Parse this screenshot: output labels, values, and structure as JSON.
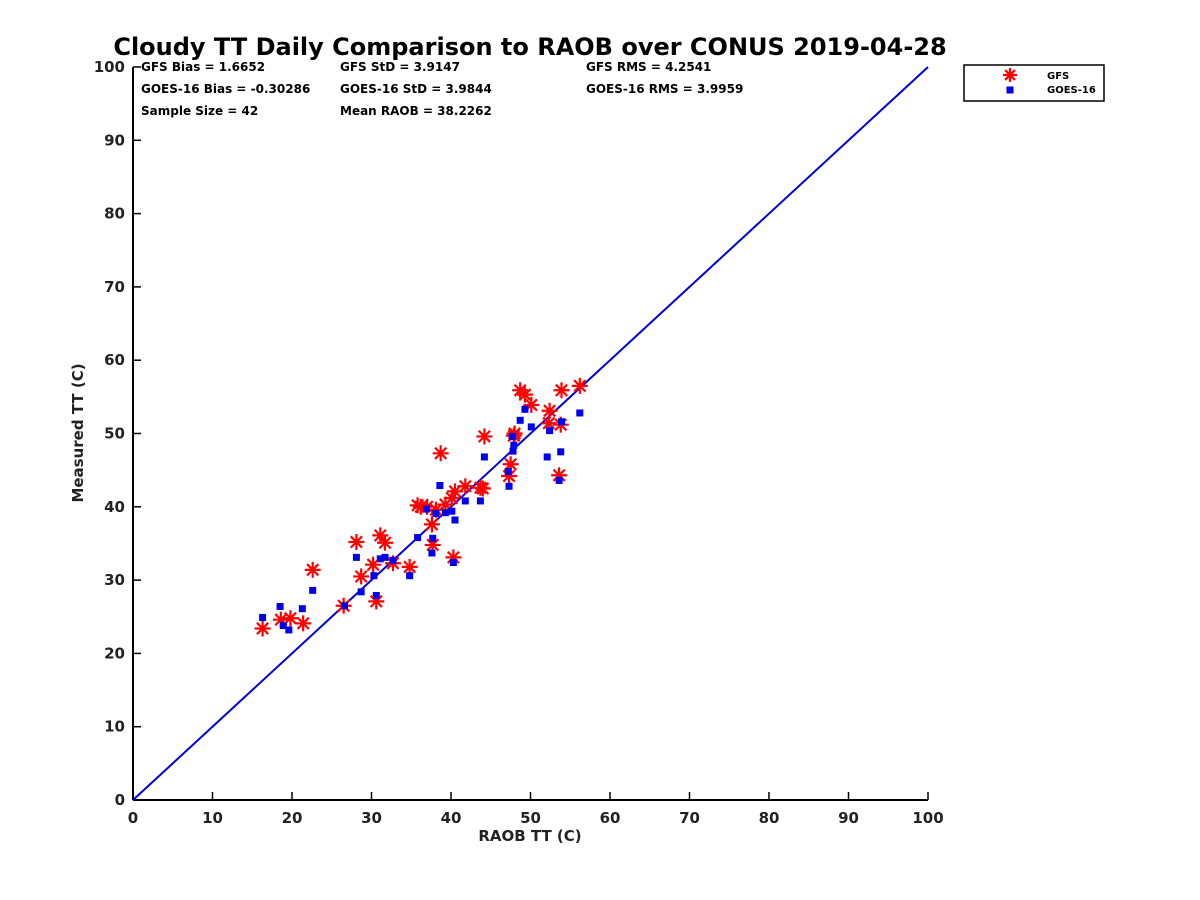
{
  "chart_data": {
    "type": "scatter",
    "title": "Cloudy TT Daily Comparison to RAOB over CONUS 2019-04-28",
    "xlabel": "RAOB TT (C)",
    "ylabel": "Measured TT (C)",
    "xlim": [
      0,
      100
    ],
    "ylim": [
      0,
      100
    ],
    "xticks": [
      0,
      10,
      20,
      30,
      40,
      50,
      60,
      70,
      80,
      90,
      100
    ],
    "yticks": [
      0,
      10,
      20,
      30,
      40,
      50,
      60,
      70,
      80,
      90,
      100
    ],
    "grid": false,
    "legend_position": "top-right outside",
    "reference_line": {
      "x": [
        0,
        100
      ],
      "y": [
        0,
        100
      ],
      "color": "#0000dd"
    },
    "stats": {
      "gfs_bias": "GFS Bias = 1.6652",
      "goes_bias": "GOES-16 Bias = -0.30286",
      "sample_size": "Sample Size = 42",
      "gfs_std": "GFS StD = 3.9147",
      "goes_std": "GOES-16 StD = 3.9844",
      "mean_raob": "Mean RAOB = 38.2262",
      "gfs_rms": "GFS RMS = 4.2541",
      "goes_rms": "GOES-16 RMS = 3.9959"
    },
    "series": [
      {
        "name": "GFS",
        "marker": "asterisk",
        "color": "#ff0000",
        "points": [
          [
            16.3,
            23.4
          ],
          [
            18.6,
            24.6
          ],
          [
            19.8,
            24.8
          ],
          [
            21.4,
            24.1
          ],
          [
            22.6,
            31.4
          ],
          [
            26.5,
            26.5
          ],
          [
            28.1,
            35.2
          ],
          [
            28.7,
            30.5
          ],
          [
            30.2,
            32.1
          ],
          [
            30.6,
            27.1
          ],
          [
            31.1,
            36.1
          ],
          [
            31.7,
            35.1
          ],
          [
            32.7,
            32.3
          ],
          [
            34.8,
            31.8
          ],
          [
            35.8,
            40.2
          ],
          [
            37.0,
            40.0
          ],
          [
            37.6,
            37.6
          ],
          [
            37.7,
            34.8
          ],
          [
            38.1,
            39.6
          ],
          [
            38.7,
            47.3
          ],
          [
            39.3,
            40.3
          ],
          [
            40.1,
            41.2
          ],
          [
            40.3,
            33.1
          ],
          [
            40.5,
            42.1
          ],
          [
            41.8,
            42.8
          ],
          [
            43.7,
            42.6
          ],
          [
            44.2,
            49.6
          ],
          [
            47.3,
            44.2
          ],
          [
            47.5,
            45.8
          ],
          [
            47.9,
            49.7
          ],
          [
            48.0,
            50.0
          ],
          [
            48.7,
            55.9
          ],
          [
            49.3,
            55.3
          ],
          [
            50.1,
            53.9
          ],
          [
            52.3,
            51.4
          ],
          [
            52.4,
            53.1
          ],
          [
            53.6,
            44.3
          ],
          [
            53.8,
            51.2
          ],
          [
            53.9,
            55.9
          ],
          [
            56.2,
            56.5
          ],
          [
            44.0,
            42.5
          ],
          [
            36.2,
            40.0
          ]
        ]
      },
      {
        "name": "GOES-16",
        "marker": "square",
        "color": "#0000ee",
        "points": [
          [
            16.3,
            24.9
          ],
          [
            18.5,
            26.4
          ],
          [
            18.9,
            23.8
          ],
          [
            19.6,
            23.2
          ],
          [
            21.3,
            26.1
          ],
          [
            22.6,
            28.6
          ],
          [
            26.6,
            26.5
          ],
          [
            28.1,
            33.1
          ],
          [
            28.7,
            28.4
          ],
          [
            30.3,
            30.6
          ],
          [
            30.6,
            27.9
          ],
          [
            31.1,
            32.9
          ],
          [
            31.7,
            33.1
          ],
          [
            32.7,
            32.7
          ],
          [
            34.8,
            30.6
          ],
          [
            35.8,
            35.8
          ],
          [
            36.9,
            39.7
          ],
          [
            37.6,
            33.7
          ],
          [
            37.7,
            35.7
          ],
          [
            38.1,
            39.1
          ],
          [
            38.6,
            42.9
          ],
          [
            39.3,
            39.2
          ],
          [
            40.1,
            39.4
          ],
          [
            40.3,
            32.4
          ],
          [
            40.5,
            38.2
          ],
          [
            41.8,
            40.8
          ],
          [
            43.7,
            40.8
          ],
          [
            44.2,
            46.8
          ],
          [
            47.2,
            44.8
          ],
          [
            47.3,
            42.8
          ],
          [
            47.8,
            47.6
          ],
          [
            47.9,
            48.4
          ],
          [
            48.7,
            51.8
          ],
          [
            49.3,
            53.3
          ],
          [
            50.1,
            50.9
          ],
          [
            52.1,
            46.8
          ],
          [
            52.4,
            50.4
          ],
          [
            53.6,
            43.6
          ],
          [
            53.8,
            47.5
          ],
          [
            53.9,
            51.6
          ],
          [
            56.2,
            52.8
          ],
          [
            47.7,
            49.6
          ]
        ]
      }
    ]
  }
}
